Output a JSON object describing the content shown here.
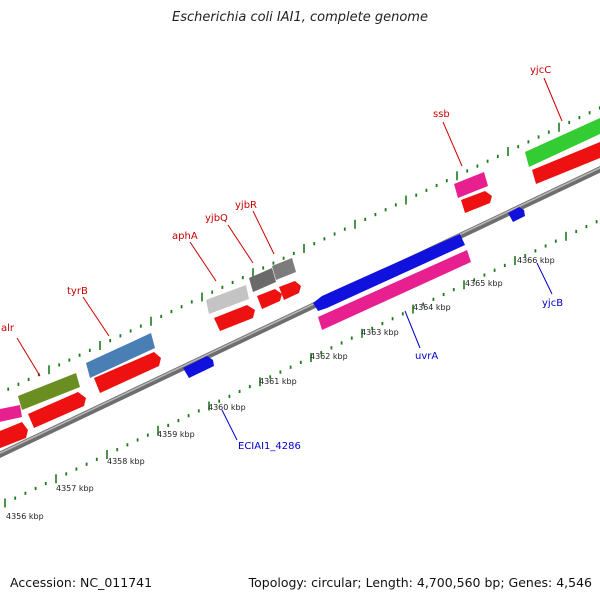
{
  "title": "Escherichia coli IAI1, complete genome",
  "footer": {
    "accession": "Accession: NC_011741",
    "topology": "Topology: circular; Length: 4,700,560 bp; Genes: 4,546"
  },
  "colors": {
    "backbone": "#8a8a8a",
    "tick": "#1e7a1e",
    "forward_label": "#cc0000",
    "reverse_label": "#0000cc",
    "cds": "#ee1111",
    "reverse_gene": "#1111dd"
  },
  "forward_labels": [
    {
      "name": "alr"
    },
    {
      "name": "tyrB"
    },
    {
      "name": "aphA"
    },
    {
      "name": "yjbQ"
    },
    {
      "name": "yjbR"
    },
    {
      "name": "ssb"
    },
    {
      "name": "yjcC"
    }
  ],
  "reverse_labels": [
    {
      "name": "ECIAI1_4286"
    },
    {
      "name": "uvrA"
    },
    {
      "name": "yjcB"
    }
  ],
  "kbp_labels": [
    "4356 kbp",
    "4357 kbp",
    "4358 kbp",
    "4359 kbp",
    "4360 kbp",
    "4361 kbp",
    "4362 kbp",
    "4363 kbp",
    "4364 kbp",
    "4365 kbp",
    "4366 kbp"
  ]
}
